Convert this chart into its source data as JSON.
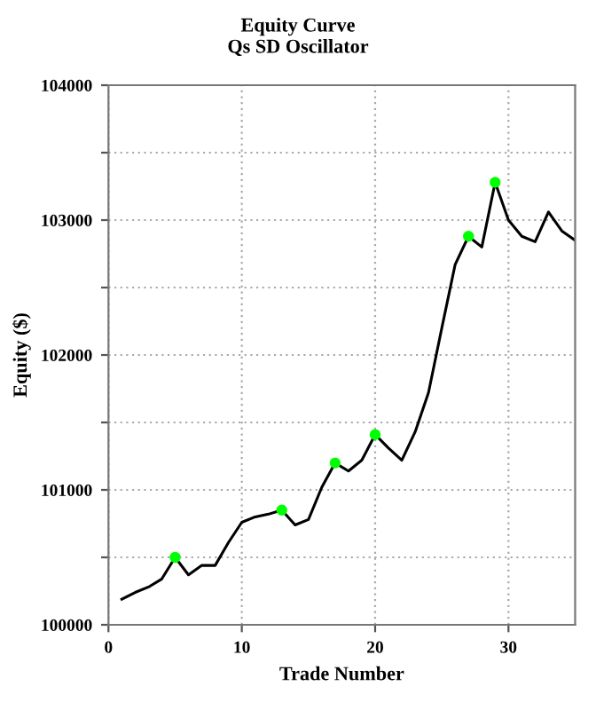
{
  "chart_data": {
    "type": "line",
    "title": "Equity Curve",
    "subtitle": "Qs SD Oscillator",
    "xlabel": "Trade Number",
    "ylabel": "Equity ($)",
    "xlim": [
      0,
      35
    ],
    "xticks": [
      0,
      10,
      20,
      30
    ],
    "ylim": [
      100000,
      104000
    ],
    "yticks": [
      100000,
      {
        "value": 100500,
        "label": null
      },
      101000,
      {
        "value": 101500,
        "label": null
      },
      102000,
      {
        "value": 102500,
        "label": null
      },
      103000,
      {
        "value": 103500,
        "label": null
      },
      104000
    ],
    "grid": true,
    "legend": false,
    "series": [
      {
        "color": "#000000",
        "marker": "none",
        "x": [
          1,
          2,
          3,
          4,
          5,
          6,
          7,
          8,
          9,
          10,
          11,
          12,
          13,
          14,
          15,
          16,
          17,
          18,
          19,
          20,
          21,
          22,
          23,
          24,
          25,
          26,
          27,
          28,
          29,
          30,
          31,
          32,
          33,
          34,
          35
        ],
        "values": [
          100190,
          100240,
          100280,
          100340,
          100500,
          100370,
          100440,
          100440,
          100610,
          100760,
          100800,
          100820,
          100850,
          100740,
          100780,
          101020,
          101200,
          101140,
          101220,
          101410,
          101310,
          101220,
          101430,
          101720,
          102200,
          102670,
          102880,
          102800,
          103280,
          103000,
          102880,
          102840,
          103060,
          102920,
          102850
        ]
      },
      {
        "type": "scatter",
        "color": "#00ff00",
        "marker": "circle",
        "x": [
          5,
          13,
          17,
          20,
          27,
          29
        ],
        "values": [
          100500,
          100850,
          101200,
          101410,
          102880,
          103280
        ]
      }
    ]
  }
}
